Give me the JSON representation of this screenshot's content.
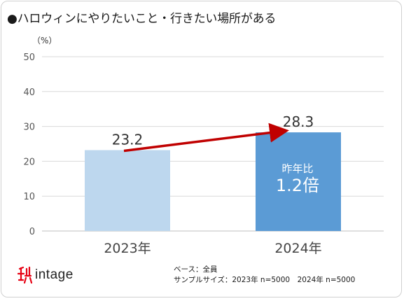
{
  "title": "●ハロウィンにやりたいこと・行きたい場所がある",
  "unit_label": "（%）",
  "chart_data": {
    "type": "bar",
    "categories": [
      "2023年",
      "2024年"
    ],
    "values": [
      23.2,
      28.3
    ],
    "data_labels": [
      "23.2",
      "28.3"
    ],
    "ylim": [
      0,
      50
    ],
    "yticks": [
      0,
      10,
      20,
      30,
      40,
      50
    ],
    "grid": true,
    "bar_colors": [
      "#bdd7ee",
      "#5b9bd5"
    ],
    "arrow_color": "#c00000"
  },
  "annotation": {
    "label": "昨年比",
    "value": "1.2倍"
  },
  "notes": {
    "base": "ベース：全員",
    "sample": "サンプルサイズ：2023年 n=5000　2024年 n=5000"
  },
  "logo": {
    "text": "intage",
    "icon": "intage-logo-icon",
    "color": "#e60012"
  }
}
